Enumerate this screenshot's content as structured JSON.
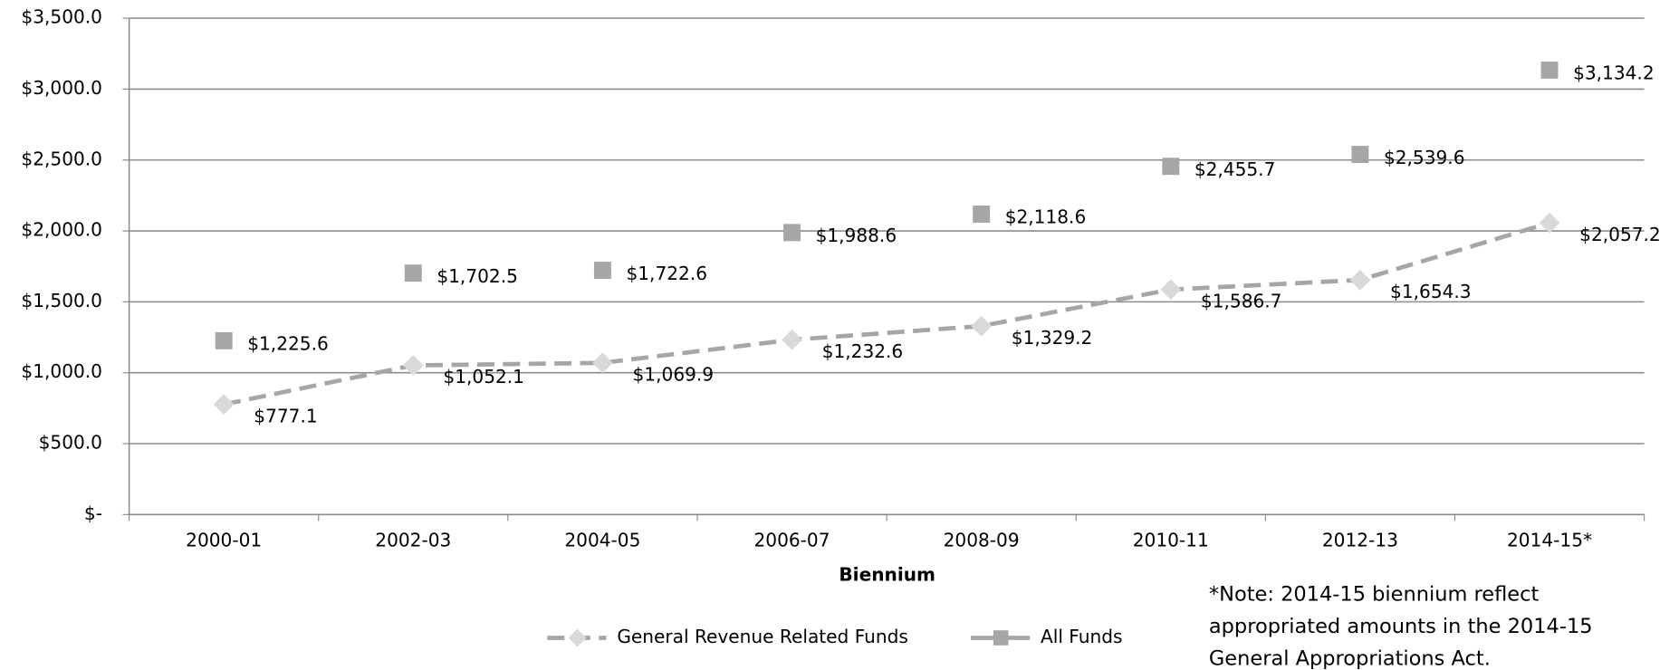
{
  "chart_data": {
    "type": "line",
    "x_label": "Biennium",
    "categories": [
      "2000-01",
      "2002-03",
      "2004-05",
      "2006-07",
      "2008-09",
      "2010-11",
      "2012-13",
      "2014-15*"
    ],
    "series": [
      {
        "name": "General Revenue Related Funds",
        "color": "#a6a6a6",
        "marker": "diamond",
        "marker_color": "#d9d9d9",
        "line_style": "dashed",
        "values": [
          777.1,
          1052.1,
          1069.9,
          1232.6,
          1329.2,
          1586.7,
          1654.3,
          2057.2
        ],
        "value_labels": [
          "$777.1",
          "$1,052.1",
          "$1,069.9",
          "$1,232.6",
          "$1,329.2",
          "$1,586.7",
          "$1,654.3",
          "$2,057.2"
        ]
      },
      {
        "name": "All Funds",
        "color": "#a6a6a6",
        "marker": "square",
        "marker_color": "#a6a6a6",
        "line_style": "none",
        "values": [
          1225.6,
          1702.5,
          1722.6,
          1988.6,
          2118.6,
          2455.7,
          2539.6,
          3134.2
        ],
        "value_labels": [
          "$1,225.6",
          "$1,702.5",
          "$1,722.6",
          "$1,988.6",
          "$2,118.6",
          "$2,455.7",
          "$2,539.6",
          "$3,134.2"
        ]
      }
    ],
    "ylim": [
      0,
      3500
    ],
    "yticks": [
      {
        "value": 0,
        "label": "$-"
      },
      {
        "value": 500,
        "label": "$500.0"
      },
      {
        "value": 1000,
        "label": "$1,000.0"
      },
      {
        "value": 1500,
        "label": "$1,500.0"
      },
      {
        "value": 2000,
        "label": "$2,000.0"
      },
      {
        "value": 2500,
        "label": "$2,500.0"
      },
      {
        "value": 3000,
        "label": "$3,000.0"
      },
      {
        "value": 3500,
        "label": "$3,500.0"
      }
    ],
    "grid": true,
    "legend": "bottom",
    "note": [
      "*Note: 2014-15 biennium reflect",
      "appropriated amounts in the 2014-15",
      "General Appropriations Act."
    ]
  }
}
